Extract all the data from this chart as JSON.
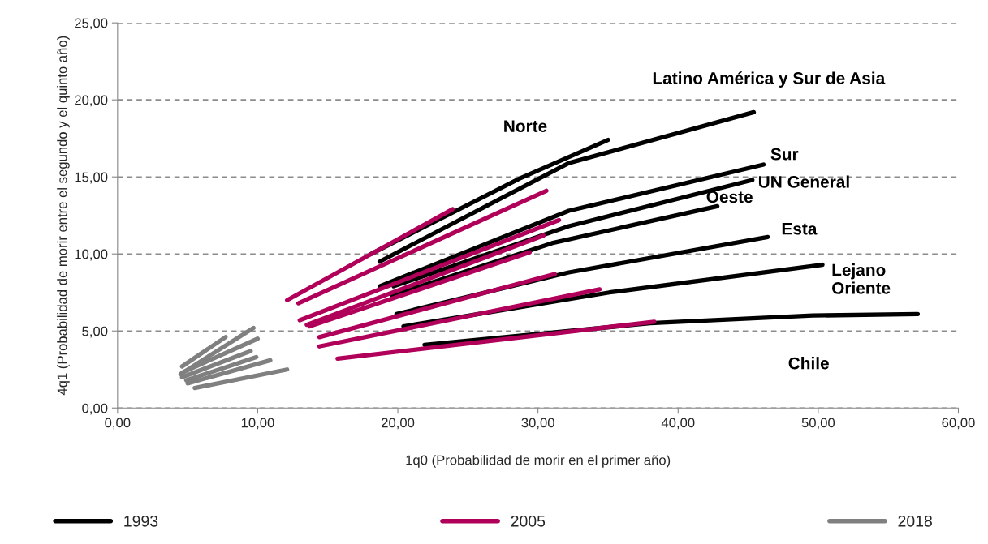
{
  "chart_data": {
    "type": "line",
    "xlabel": "1q0 (Probabilidad de morir en el primer año)",
    "ylabel": "4q1 (Probabilidad de morir entre el segundo y el quinto año)",
    "xlim": [
      0,
      60
    ],
    "ylim": [
      0,
      25
    ],
    "xticks": [
      {
        "value": 0,
        "label": "0,00"
      },
      {
        "value": 10,
        "label": "10,00"
      },
      {
        "value": 20,
        "label": "20,00"
      },
      {
        "value": 30,
        "label": "30,00"
      },
      {
        "value": 40,
        "label": "40,00"
      },
      {
        "value": 50,
        "label": "50,00"
      },
      {
        "value": 60,
        "label": "60,00"
      }
    ],
    "yticks": [
      {
        "value": 0,
        "label": "0,00"
      },
      {
        "value": 5,
        "label": "5,00"
      },
      {
        "value": 10,
        "label": "10,00"
      },
      {
        "value": 15,
        "label": "15,00"
      },
      {
        "value": 20,
        "label": "20,00"
      },
      {
        "value": 25,
        "label": "25,00"
      }
    ],
    "grid": "y",
    "legend": "bottom",
    "line_style": "solid",
    "marker": "none",
    "series": [
      {
        "name": "1993",
        "color": "#000000",
        "x": [
          18.1,
          28.7,
          35.0,
          null,
          18.7,
          32.2,
          45.4,
          null,
          18.7,
          32.2,
          46.1,
          null,
          19.7,
          32.2,
          45.3,
          null,
          19.6,
          31.0,
          42.8,
          null,
          19.9,
          32.2,
          46.4,
          null,
          20.4,
          35.1,
          50.3,
          null,
          21.9,
          38.0,
          49.6,
          57.1
        ],
        "values": [
          10.0,
          14.9,
          17.4,
          null,
          9.5,
          15.9,
          19.2,
          null,
          7.9,
          12.8,
          15.8,
          null,
          7.9,
          11.8,
          14.8,
          null,
          7.3,
          10.7,
          13.1,
          null,
          6.1,
          8.8,
          11.1,
          null,
          5.3,
          7.5,
          9.3,
          null,
          4.1,
          5.5,
          6.0,
          6.1
        ]
      },
      {
        "name": "2005",
        "color": "#b0005a",
        "x": [
          12.1,
          23.9,
          null,
          12.9,
          30.6,
          null,
          13.0,
          31.5,
          null,
          13.5,
          30.4,
          null,
          13.7,
          29.4,
          null,
          14.4,
          31.2,
          null,
          14.4,
          34.4,
          null,
          15.7,
          38.3
        ],
        "values": [
          7.0,
          12.9,
          null,
          6.8,
          14.1,
          null,
          5.7,
          12.2,
          null,
          5.4,
          11.2,
          null,
          5.3,
          10.1,
          null,
          4.6,
          8.7,
          null,
          4.0,
          7.7,
          null,
          3.2,
          5.6
        ]
      },
      {
        "name": "2018",
        "color": "#808080",
        "x": [
          4.6,
          7.7,
          null,
          4.5,
          9.7,
          null,
          4.6,
          10.0,
          null,
          4.6,
          9.5,
          null,
          4.9,
          9.9,
          null,
          5.0,
          10.9,
          null,
          5.5,
          12.1
        ],
        "values": [
          2.7,
          4.6,
          null,
          2.2,
          5.2,
          null,
          2.3,
          4.5,
          null,
          2.0,
          3.7,
          null,
          1.8,
          3.3,
          null,
          1.6,
          3.1,
          null,
          1.3,
          2.5
        ]
      }
    ],
    "annotations": [
      "Norte",
      "Latino América y Sur de Asia",
      "Sur",
      "UN General",
      "Oeste",
      "Esta",
      "Lejano\nOriente",
      "Chile"
    ]
  }
}
